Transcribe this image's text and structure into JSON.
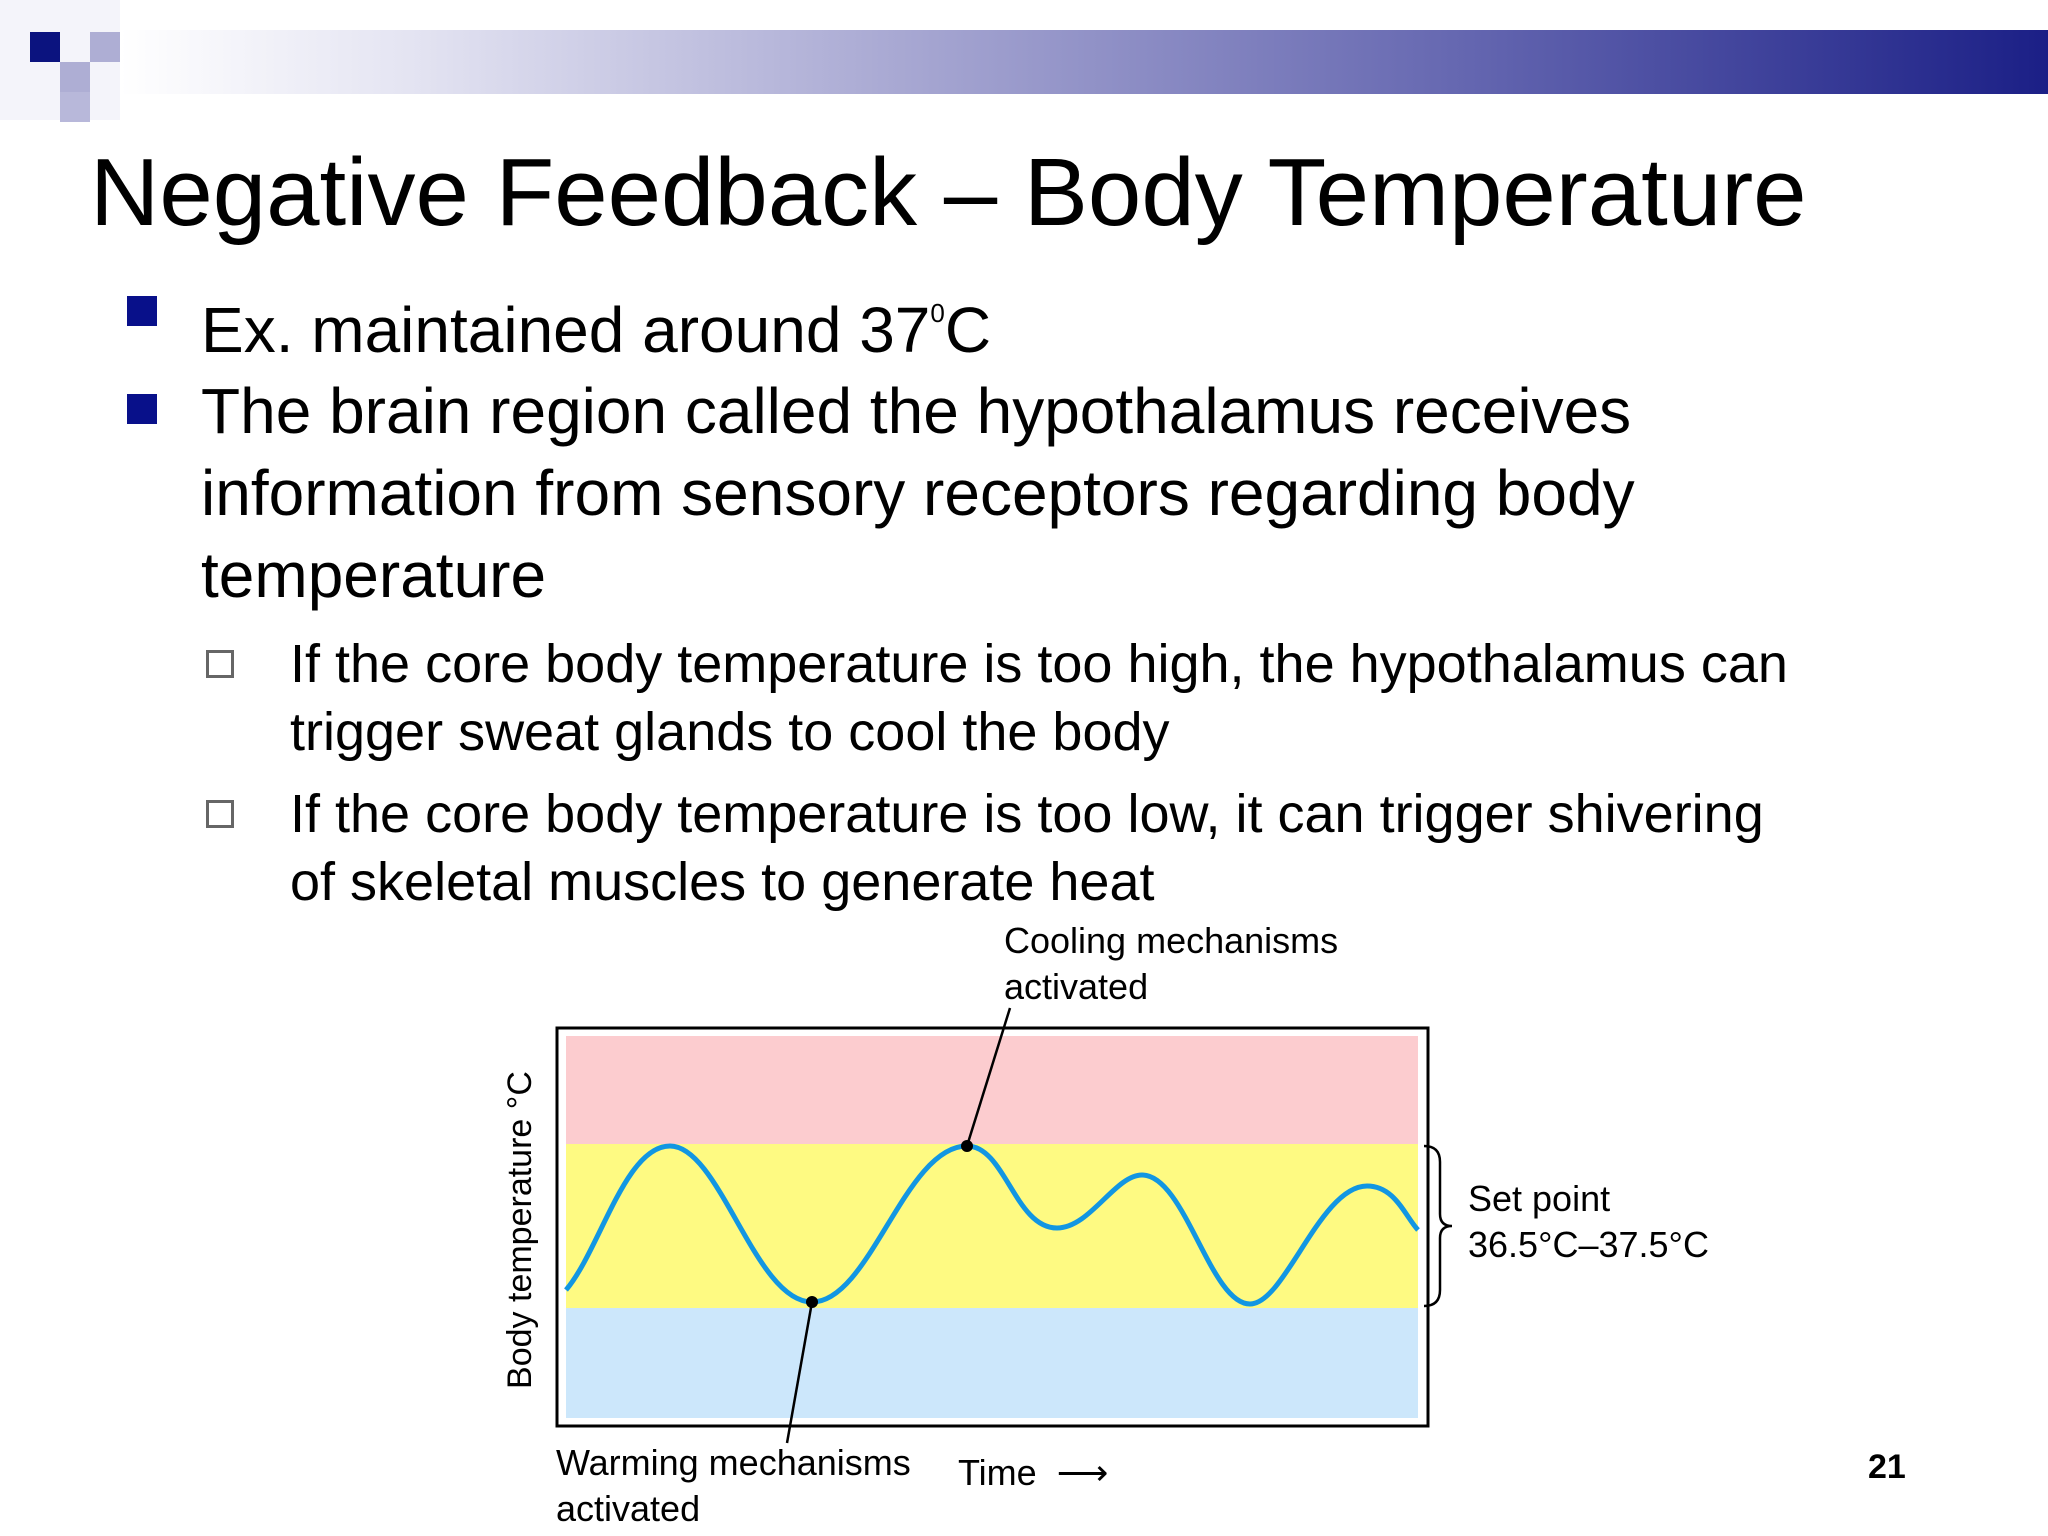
{
  "title": "Negative Feedback – Body Temperature",
  "bullets": [
    {
      "text": "Ex. maintained around 37",
      "sup": "0",
      "suffix": "C"
    },
    {
      "lines": [
        "The brain region called the hypothalamus receives",
        "information from sensory receptors regarding body",
        "temperature"
      ]
    }
  ],
  "sub_bullets": [
    {
      "lines": [
        "If the core body temperature is too high, the hypothalamus can",
        "trigger sweat glands to cool the body"
      ]
    },
    {
      "lines": [
        "If the core body temperature is too low, it can trigger shivering",
        "of skeletal muscles to generate heat"
      ]
    }
  ],
  "diagram": {
    "y_axis_label": "Body temperature °C",
    "x_axis_label": "Time",
    "x_axis_arrow": "⟶",
    "cooling_label": [
      "Cooling mechanisms",
      "activated"
    ],
    "warming_label": [
      "Warming mechanisms",
      "activated"
    ],
    "set_point_label": "Set point",
    "set_point_range": "36.5°C–37.5°C",
    "colors": {
      "high_zone": "#fccccf",
      "set_point_zone": "#fefa82",
      "low_zone": "#cce7fb",
      "curve": "#1296e2"
    }
  },
  "slide_number": "21"
}
